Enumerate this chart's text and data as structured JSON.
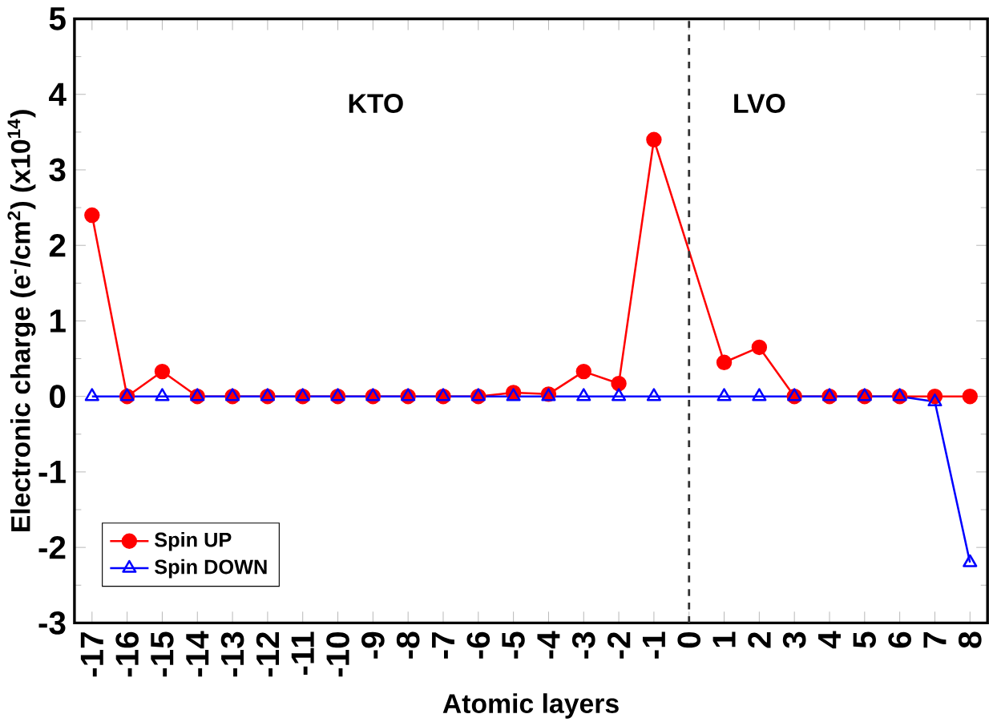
{
  "chart_data": {
    "type": "line",
    "xlabel": "Atomic layers",
    "ylabel": "Electronic charge (e$^{-}$/cm$^{2}$) (x10$^{14}$)",
    "xlim": [
      -17.5,
      8.5
    ],
    "xticks": [
      -17,
      -16,
      -15,
      -14,
      -13,
      -12,
      -11,
      -10,
      -9,
      -8,
      -7,
      -6,
      -5,
      -4,
      -3,
      -2,
      -1,
      0,
      1,
      2,
      3,
      4,
      5,
      6,
      7,
      8
    ],
    "ylim": [
      -3,
      5
    ],
    "yticks": [
      -3,
      -2,
      -1,
      0,
      1,
      2,
      3,
      4,
      5
    ],
    "annotations": [
      "KTO",
      "LVO"
    ],
    "ref_lines": [
      {
        "axis": "x",
        "value": 0,
        "color": "#333333",
        "line_style": "dashed"
      }
    ],
    "legend": "bottom left",
    "series": [
      {
        "name": "Spin UP",
        "color": "#ff0000",
        "marker": "circle",
        "x": [
          -17,
          -16,
          -15,
          -14,
          -13,
          -12,
          -11,
          -10,
          -9,
          -8,
          -7,
          -6,
          -5,
          -4,
          -3,
          -2,
          -1,
          1,
          2,
          3,
          4,
          5,
          6,
          7,
          8
        ],
        "values": [
          2.4,
          0,
          0.33,
          0,
          0,
          0,
          0,
          0,
          0,
          0,
          0,
          0,
          0.05,
          0.03,
          0.33,
          0.17,
          3.4,
          0.45,
          0.65,
          0,
          0,
          0,
          0,
          0,
          0
        ]
      },
      {
        "name": "Spin DOWN",
        "color": "#0000ff",
        "marker": "triangle",
        "x": [
          -17,
          -16,
          -15,
          -14,
          -13,
          -12,
          -11,
          -10,
          -9,
          -8,
          -7,
          -6,
          -5,
          -4,
          -3,
          -2,
          -1,
          1,
          2,
          3,
          4,
          5,
          6,
          7,
          8
        ],
        "values": [
          0,
          0,
          0,
          0,
          0,
          0,
          0,
          0,
          0,
          0,
          0,
          0,
          0,
          0,
          0,
          0,
          0,
          0,
          0,
          0,
          0,
          0,
          0,
          -0.07,
          -2.2
        ]
      }
    ]
  }
}
